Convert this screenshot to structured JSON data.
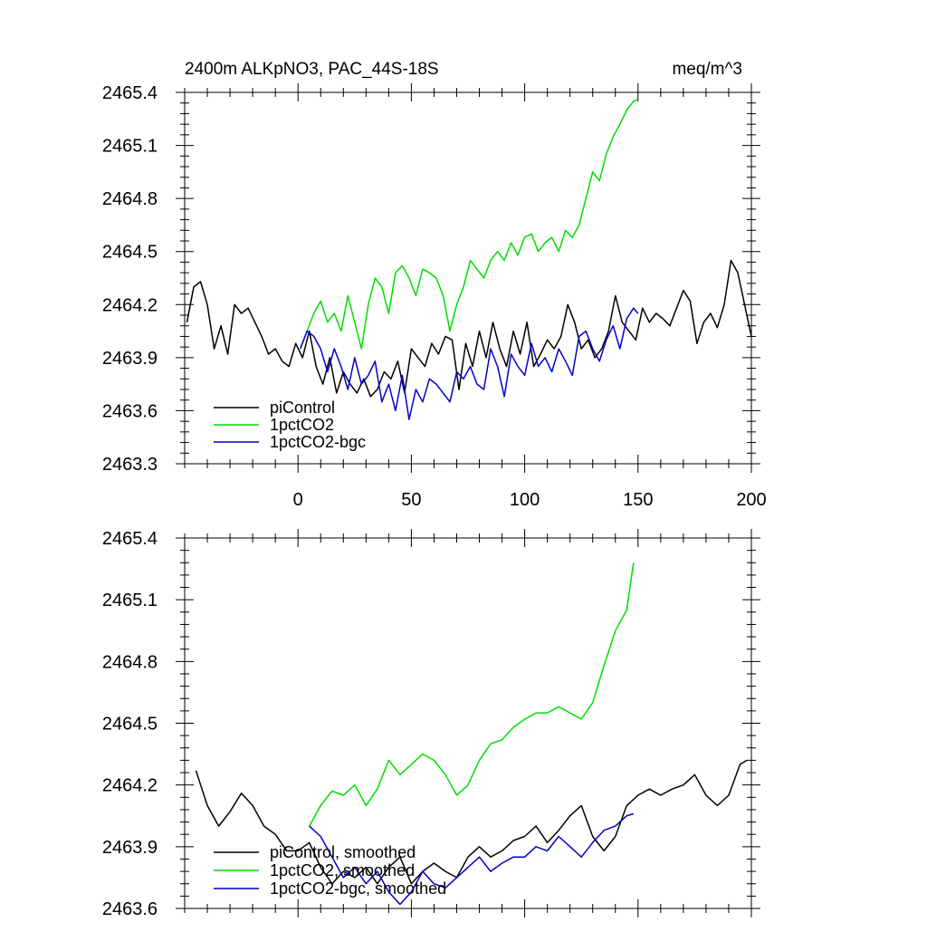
{
  "chart_data": [
    {
      "type": "line",
      "title": "2400m ALKpNO3, PAC_44S-18S",
      "units_label": "meq/m^3",
      "xlabel": "",
      "ylabel": "",
      "xlim": [
        -50,
        200
      ],
      "ylim": [
        2463.3,
        2465.4
      ],
      "xticks": [
        0,
        50,
        100,
        150,
        200
      ],
      "xtick_labels": [
        "0",
        "50",
        "100",
        "150",
        "200"
      ],
      "yticks": [
        2463.3,
        2463.6,
        2463.9,
        2464.2,
        2464.5,
        2464.8,
        2465.1,
        2465.4
      ],
      "ytick_labels": [
        "2463.3",
        "2463.6",
        "2463.9",
        "2464.2",
        "2464.5",
        "2464.8",
        "2465.1",
        "2465.4"
      ],
      "grid": false,
      "legend_position": "bottom-left",
      "series": [
        {
          "name": "piControl",
          "color": "#000000",
          "x": [
            -49,
            -46,
            -43,
            -40,
            -37,
            -34,
            -31,
            -28,
            -25,
            -22,
            -19,
            -16,
            -13,
            -10,
            -7,
            -4,
            -1,
            2,
            5,
            8,
            11,
            14,
            17,
            20,
            23,
            26,
            29,
            32,
            35,
            38,
            41,
            44,
            47,
            50,
            53,
            56,
            59,
            62,
            65,
            68,
            71,
            74,
            77,
            80,
            83,
            86,
            89,
            92,
            95,
            98,
            101,
            104,
            107,
            110,
            113,
            116,
            119,
            122,
            125,
            128,
            131,
            134,
            137,
            140,
            143,
            146,
            149,
            152,
            155,
            158,
            161,
            164,
            167,
            170,
            173,
            176,
            179,
            182,
            185,
            188,
            191,
            194,
            197,
            200
          ],
          "y": [
            2464.1,
            2464.3,
            2464.33,
            2464.2,
            2463.95,
            2464.08,
            2463.92,
            2464.2,
            2464.15,
            2464.18,
            2464.1,
            2464.02,
            2463.92,
            2463.95,
            2463.88,
            2463.85,
            2463.98,
            2463.9,
            2464.05,
            2463.85,
            2463.75,
            2463.9,
            2463.7,
            2463.82,
            2463.75,
            2463.7,
            2463.78,
            2463.68,
            2463.72,
            2463.82,
            2463.78,
            2463.88,
            2463.7,
            2463.95,
            2463.9,
            2463.85,
            2463.98,
            2463.92,
            2464.02,
            2464.0,
            2463.72,
            2463.98,
            2463.85,
            2464.05,
            2463.9,
            2464.1,
            2463.95,
            2463.85,
            2464.05,
            2463.92,
            2464.1,
            2463.85,
            2463.92,
            2464.0,
            2463.95,
            2464.02,
            2464.2,
            2464.1,
            2463.95,
            2464.0,
            2463.9,
            2463.95,
            2464.05,
            2464.25,
            2464.1,
            2464.05,
            2464.0,
            2464.18,
            2464.1,
            2464.15,
            2464.12,
            2464.08,
            2464.18,
            2464.28,
            2464.22,
            2463.98,
            2464.1,
            2464.15,
            2464.07,
            2464.2,
            2464.45,
            2464.38,
            2464.2,
            2464.02
          ]
        },
        {
          "name": "1pctCO2",
          "color": "#00dd00",
          "x": [
            1,
            4,
            7,
            10,
            13,
            16,
            19,
            22,
            25,
            28,
            31,
            34,
            37,
            40,
            43,
            46,
            49,
            52,
            55,
            58,
            61,
            64,
            67,
            70,
            73,
            76,
            79,
            82,
            85,
            88,
            91,
            94,
            97,
            100,
            103,
            106,
            109,
            112,
            115,
            118,
            121,
            124,
            127,
            130,
            133,
            136,
            139,
            142,
            145,
            148,
            150
          ],
          "y": [
            2463.95,
            2464.05,
            2464.15,
            2464.22,
            2464.1,
            2464.15,
            2464.05,
            2464.25,
            2464.1,
            2463.95,
            2464.2,
            2464.35,
            2464.3,
            2464.15,
            2464.38,
            2464.42,
            2464.35,
            2464.25,
            2464.4,
            2464.38,
            2464.35,
            2464.25,
            2464.05,
            2464.2,
            2464.3,
            2464.45,
            2464.4,
            2464.35,
            2464.45,
            2464.5,
            2464.45,
            2464.55,
            2464.48,
            2464.58,
            2464.6,
            2464.5,
            2464.55,
            2464.58,
            2464.5,
            2464.62,
            2464.58,
            2464.65,
            2464.8,
            2464.95,
            2464.9,
            2465.05,
            2465.15,
            2465.22,
            2465.3,
            2465.35,
            2465.36
          ]
        },
        {
          "name": "1pctCO2-bgc",
          "color": "#0000cc",
          "x": [
            1,
            4,
            7,
            10,
            13,
            16,
            19,
            22,
            25,
            28,
            31,
            34,
            37,
            40,
            43,
            46,
            49,
            52,
            55,
            58,
            61,
            64,
            67,
            70,
            73,
            76,
            79,
            82,
            85,
            88,
            91,
            94,
            97,
            100,
            103,
            106,
            109,
            112,
            115,
            118,
            121,
            124,
            127,
            130,
            133,
            136,
            139,
            142,
            145,
            148,
            150
          ],
          "y": [
            2463.95,
            2464.05,
            2464.02,
            2463.95,
            2463.82,
            2463.95,
            2463.85,
            2463.72,
            2463.9,
            2463.75,
            2463.8,
            2463.88,
            2463.65,
            2463.75,
            2463.6,
            2463.8,
            2463.55,
            2463.72,
            2463.65,
            2463.78,
            2463.75,
            2463.7,
            2463.65,
            2463.82,
            2463.78,
            2463.85,
            2463.75,
            2463.72,
            2463.95,
            2463.85,
            2463.68,
            2463.92,
            2463.85,
            2463.8,
            2463.98,
            2463.85,
            2463.9,
            2463.82,
            2463.95,
            2463.88,
            2463.8,
            2464.02,
            2464.05,
            2463.95,
            2463.88,
            2464.0,
            2464.08,
            2463.95,
            2464.12,
            2464.18,
            2464.15
          ]
        }
      ]
    },
    {
      "type": "line",
      "title": "",
      "xlabel": "",
      "ylabel": "",
      "xlim": [
        -50,
        200
      ],
      "ylim": [
        2463.6,
        2465.4
      ],
      "xticks": [
        0,
        50,
        100,
        150,
        200
      ],
      "yticks": [
        2463.6,
        2463.9,
        2464.2,
        2464.5,
        2464.8,
        2465.1,
        2465.4
      ],
      "ytick_labels": [
        "2463.6",
        "2463.9",
        "2464.2",
        "2464.5",
        "2464.8",
        "2465.1",
        "2465.4"
      ],
      "grid": false,
      "legend_position": "bottom-left",
      "series": [
        {
          "name": "piControl, smoothed",
          "color": "#000000",
          "x": [
            -45,
            -40,
            -35,
            -30,
            -25,
            -20,
            -15,
            -10,
            -5,
            0,
            5,
            10,
            15,
            20,
            25,
            30,
            35,
            40,
            45,
            50,
            55,
            60,
            65,
            70,
            75,
            80,
            85,
            90,
            95,
            100,
            105,
            110,
            115,
            120,
            125,
            130,
            135,
            140,
            145,
            150,
            155,
            160,
            165,
            170,
            175,
            180,
            185,
            190,
            195,
            198
          ],
          "y": [
            2464.27,
            2464.1,
            2464.0,
            2464.07,
            2464.16,
            2464.1,
            2464.0,
            2463.96,
            2463.88,
            2463.88,
            2463.92,
            2463.8,
            2463.72,
            2463.78,
            2463.75,
            2463.8,
            2463.72,
            2463.8,
            2463.85,
            2463.72,
            2463.78,
            2463.82,
            2463.78,
            2463.75,
            2463.85,
            2463.9,
            2463.85,
            2463.88,
            2463.93,
            2463.95,
            2464.0,
            2463.92,
            2463.98,
            2464.05,
            2464.1,
            2463.95,
            2463.88,
            2463.95,
            2464.1,
            2464.15,
            2464.18,
            2464.15,
            2464.18,
            2464.2,
            2464.25,
            2464.15,
            2464.1,
            2464.15,
            2464.3,
            2464.32
          ]
        },
        {
          "name": "1pctCO2, smoothed",
          "color": "#00dd00",
          "x": [
            5,
            10,
            15,
            20,
            25,
            30,
            35,
            40,
            45,
            50,
            55,
            60,
            65,
            70,
            75,
            80,
            85,
            90,
            95,
            100,
            105,
            110,
            115,
            120,
            125,
            130,
            135,
            140,
            145,
            148
          ],
          "y": [
            2464.0,
            2464.1,
            2464.17,
            2464.15,
            2464.2,
            2464.1,
            2464.18,
            2464.32,
            2464.25,
            2464.3,
            2464.35,
            2464.32,
            2464.25,
            2464.15,
            2464.2,
            2464.32,
            2464.4,
            2464.42,
            2464.48,
            2464.52,
            2464.55,
            2464.55,
            2464.58,
            2464.55,
            2464.52,
            2464.6,
            2464.78,
            2464.95,
            2465.05,
            2465.28
          ]
        },
        {
          "name": "1pctCO2-bgc, smoothed",
          "color": "#0000cc",
          "x": [
            5,
            10,
            15,
            20,
            25,
            30,
            35,
            40,
            45,
            50,
            55,
            60,
            65,
            70,
            75,
            80,
            85,
            90,
            95,
            100,
            105,
            110,
            115,
            120,
            125,
            130,
            135,
            140,
            145,
            148
          ],
          "y": [
            2464.0,
            2463.95,
            2463.85,
            2463.75,
            2463.8,
            2463.72,
            2463.78,
            2463.68,
            2463.62,
            2463.68,
            2463.78,
            2463.72,
            2463.7,
            2463.75,
            2463.8,
            2463.85,
            2463.78,
            2463.82,
            2463.85,
            2463.85,
            2463.9,
            2463.88,
            2463.95,
            2463.9,
            2463.85,
            2463.92,
            2463.98,
            2464.0,
            2464.05,
            2464.06
          ]
        }
      ]
    }
  ]
}
